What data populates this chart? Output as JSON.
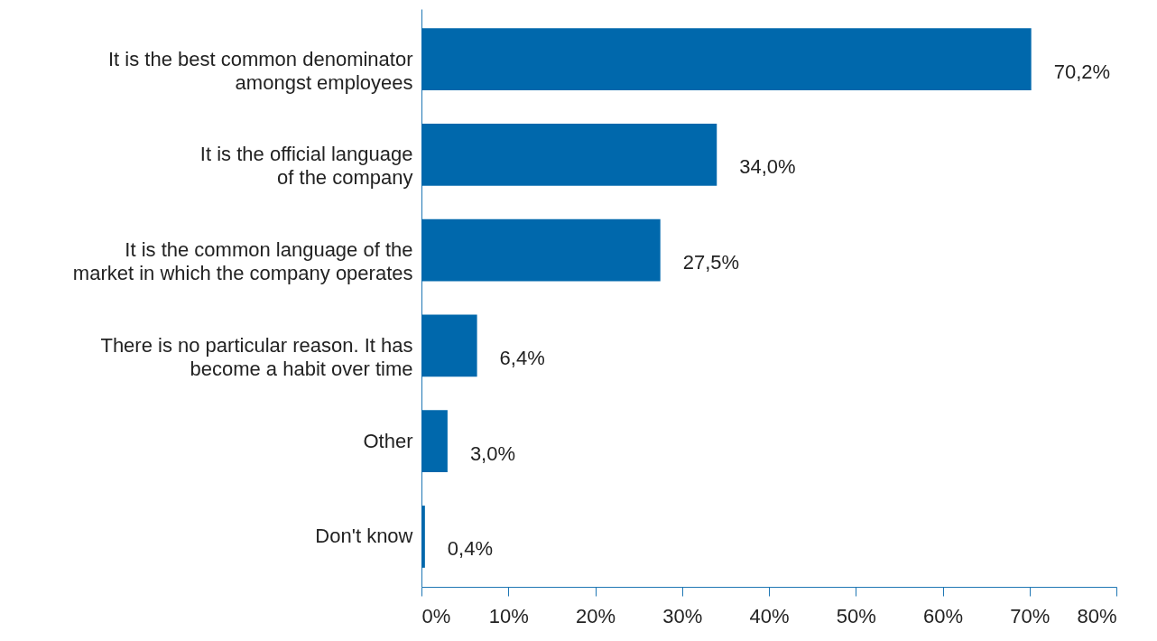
{
  "chart_data": {
    "type": "bar",
    "orientation": "horizontal",
    "categories": [
      "It is the best common denominator\namongst employees",
      "It is the official language\nof the company",
      "It is the common language of the\nmarket in which the company operates",
      "There is no particular reason. It has\nbecome a habit over time",
      "Other",
      "Don't know"
    ],
    "values": [
      70.2,
      34.0,
      27.5,
      6.4,
      3.0,
      0.4
    ],
    "value_labels": [
      "70,2%",
      "34,0%",
      "27,5%",
      "6,4%",
      "3,0%",
      "0,4%"
    ],
    "color": "#0068ac",
    "xlim": [
      0,
      80
    ],
    "xticks": [
      {
        "value": 0,
        "label": "0%"
      },
      {
        "value": 10,
        "label": "10%"
      },
      {
        "value": 20,
        "label": "20%"
      },
      {
        "value": 30,
        "label": "30%"
      },
      {
        "value": 40,
        "label": "40%"
      },
      {
        "value": 50,
        "label": "50%"
      },
      {
        "value": 60,
        "label": "60%"
      },
      {
        "value": 70,
        "label": "70%"
      },
      {
        "value": 80,
        "label": "80%"
      }
    ],
    "grid": false
  }
}
